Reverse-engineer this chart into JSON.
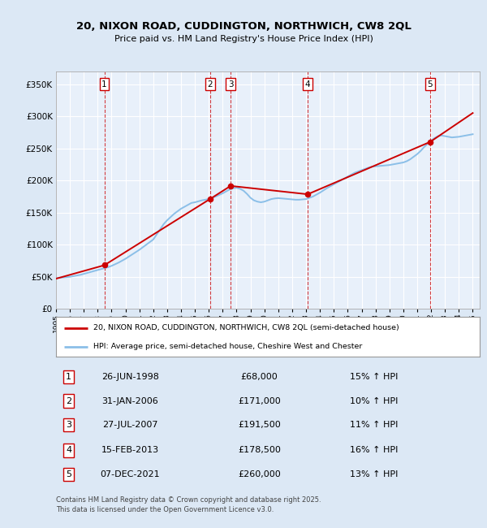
{
  "title": "20, NIXON ROAD, CUDDINGTON, NORTHWICH, CW8 2QL",
  "subtitle": "Price paid vs. HM Land Registry's House Price Index (HPI)",
  "ylim": [
    0,
    370000
  ],
  "xlim_start": 1995.0,
  "xlim_end": 2025.5,
  "legend_line1": "20, NIXON ROAD, CUDDINGTON, NORTHWICH, CW8 2QL (semi-detached house)",
  "legend_line2": "HPI: Average price, semi-detached house, Cheshire West and Chester",
  "footnote": "Contains HM Land Registry data © Crown copyright and database right 2025.\nThis data is licensed under the Open Government Licence v3.0.",
  "transactions": [
    {
      "num": 1,
      "date": "26-JUN-1998",
      "date_float": 1998.48,
      "price": 68000,
      "pct": "15%",
      "dir": "↑"
    },
    {
      "num": 2,
      "date": "31-JAN-2006",
      "date_float": 2006.08,
      "price": 171000,
      "pct": "10%",
      "dir": "↑"
    },
    {
      "num": 3,
      "date": "27-JUL-2007",
      "date_float": 2007.57,
      "price": 191500,
      "pct": "11%",
      "dir": "↑"
    },
    {
      "num": 4,
      "date": "15-FEB-2013",
      "date_float": 2013.12,
      "price": 178500,
      "pct": "16%",
      "dir": "↑"
    },
    {
      "num": 5,
      "date": "07-DEC-2021",
      "date_float": 2021.93,
      "price": 260000,
      "pct": "13%",
      "dir": "↑"
    }
  ],
  "hpi_color": "#8bbfe8",
  "price_color": "#cc0000",
  "background_color": "#dce8f5",
  "plot_bg_color": "#e8f0fa",
  "grid_color": "#ffffff",
  "vline_color": "#cc0000",
  "hpi_data": [
    [
      1995.0,
      48000
    ],
    [
      1995.25,
      48500
    ],
    [
      1995.5,
      49000
    ],
    [
      1995.75,
      49500
    ],
    [
      1996.0,
      50000
    ],
    [
      1996.25,
      51000
    ],
    [
      1996.5,
      52000
    ],
    [
      1996.75,
      53000
    ],
    [
      1997.0,
      54500
    ],
    [
      1997.25,
      56000
    ],
    [
      1997.5,
      57500
    ],
    [
      1997.75,
      59000
    ],
    [
      1998.0,
      60500
    ],
    [
      1998.25,
      62000
    ],
    [
      1998.5,
      63500
    ],
    [
      1998.75,
      65000
    ],
    [
      1999.0,
      67000
    ],
    [
      1999.25,
      69500
    ],
    [
      1999.5,
      72000
    ],
    [
      1999.75,
      75000
    ],
    [
      2000.0,
      78000
    ],
    [
      2000.25,
      81500
    ],
    [
      2000.5,
      85000
    ],
    [
      2000.75,
      88500
    ],
    [
      2001.0,
      92000
    ],
    [
      2001.25,
      96000
    ],
    [
      2001.5,
      100000
    ],
    [
      2001.75,
      104000
    ],
    [
      2002.0,
      108000
    ],
    [
      2002.25,
      116000
    ],
    [
      2002.5,
      124000
    ],
    [
      2002.75,
      132000
    ],
    [
      2003.0,
      138000
    ],
    [
      2003.25,
      143000
    ],
    [
      2003.5,
      148000
    ],
    [
      2003.75,
      152000
    ],
    [
      2004.0,
      156000
    ],
    [
      2004.25,
      159000
    ],
    [
      2004.5,
      162000
    ],
    [
      2004.75,
      165000
    ],
    [
      2005.0,
      166000
    ],
    [
      2005.25,
      167500
    ],
    [
      2005.5,
      169000
    ],
    [
      2005.75,
      170000
    ],
    [
      2006.0,
      171000
    ],
    [
      2006.25,
      173000
    ],
    [
      2006.5,
      175000
    ],
    [
      2006.75,
      177500
    ],
    [
      2007.0,
      180000
    ],
    [
      2007.25,
      183000
    ],
    [
      2007.5,
      186000
    ],
    [
      2007.75,
      188000
    ],
    [
      2008.0,
      188500
    ],
    [
      2008.25,
      187000
    ],
    [
      2008.5,
      184000
    ],
    [
      2008.75,
      179000
    ],
    [
      2009.0,
      173000
    ],
    [
      2009.25,
      169000
    ],
    [
      2009.5,
      167000
    ],
    [
      2009.75,
      166000
    ],
    [
      2010.0,
      167000
    ],
    [
      2010.25,
      169000
    ],
    [
      2010.5,
      171000
    ],
    [
      2010.75,
      172000
    ],
    [
      2011.0,
      172500
    ],
    [
      2011.25,
      172000
    ],
    [
      2011.5,
      171500
    ],
    [
      2011.75,
      171000
    ],
    [
      2012.0,
      170500
    ],
    [
      2012.25,
      170000
    ],
    [
      2012.5,
      170000
    ],
    [
      2012.75,
      170500
    ],
    [
      2013.0,
      171000
    ],
    [
      2013.25,
      173000
    ],
    [
      2013.5,
      175000
    ],
    [
      2013.75,
      178000
    ],
    [
      2014.0,
      181000
    ],
    [
      2014.25,
      184500
    ],
    [
      2014.5,
      188000
    ],
    [
      2014.75,
      191000
    ],
    [
      2015.0,
      194000
    ],
    [
      2015.25,
      197000
    ],
    [
      2015.5,
      200000
    ],
    [
      2015.75,
      203000
    ],
    [
      2016.0,
      206000
    ],
    [
      2016.25,
      209000
    ],
    [
      2016.5,
      212000
    ],
    [
      2016.75,
      214000
    ],
    [
      2017.0,
      216000
    ],
    [
      2017.25,
      218000
    ],
    [
      2017.5,
      220000
    ],
    [
      2017.75,
      221500
    ],
    [
      2018.0,
      222000
    ],
    [
      2018.25,
      222500
    ],
    [
      2018.5,
      223000
    ],
    [
      2018.75,
      223500
    ],
    [
      2019.0,
      224000
    ],
    [
      2019.25,
      225000
    ],
    [
      2019.5,
      226000
    ],
    [
      2019.75,
      227000
    ],
    [
      2020.0,
      228000
    ],
    [
      2020.25,
      230000
    ],
    [
      2020.5,
      233000
    ],
    [
      2020.75,
      237000
    ],
    [
      2021.0,
      241000
    ],
    [
      2021.25,
      246000
    ],
    [
      2021.5,
      252000
    ],
    [
      2021.75,
      257000
    ],
    [
      2022.0,
      262000
    ],
    [
      2022.25,
      266000
    ],
    [
      2022.5,
      269000
    ],
    [
      2022.75,
      270000
    ],
    [
      2023.0,
      269000
    ],
    [
      2023.25,
      268000
    ],
    [
      2023.5,
      267000
    ],
    [
      2023.75,
      267500
    ],
    [
      2024.0,
      268000
    ],
    [
      2024.25,
      269000
    ],
    [
      2024.5,
      270000
    ],
    [
      2024.75,
      271000
    ],
    [
      2025.0,
      272000
    ]
  ],
  "price_line_data": [
    [
      1995.0,
      47000
    ],
    [
      1998.48,
      68000
    ],
    [
      2006.08,
      171000
    ],
    [
      2007.57,
      191500
    ],
    [
      2013.12,
      178500
    ],
    [
      2021.93,
      260000
    ],
    [
      2025.0,
      305000
    ]
  ]
}
